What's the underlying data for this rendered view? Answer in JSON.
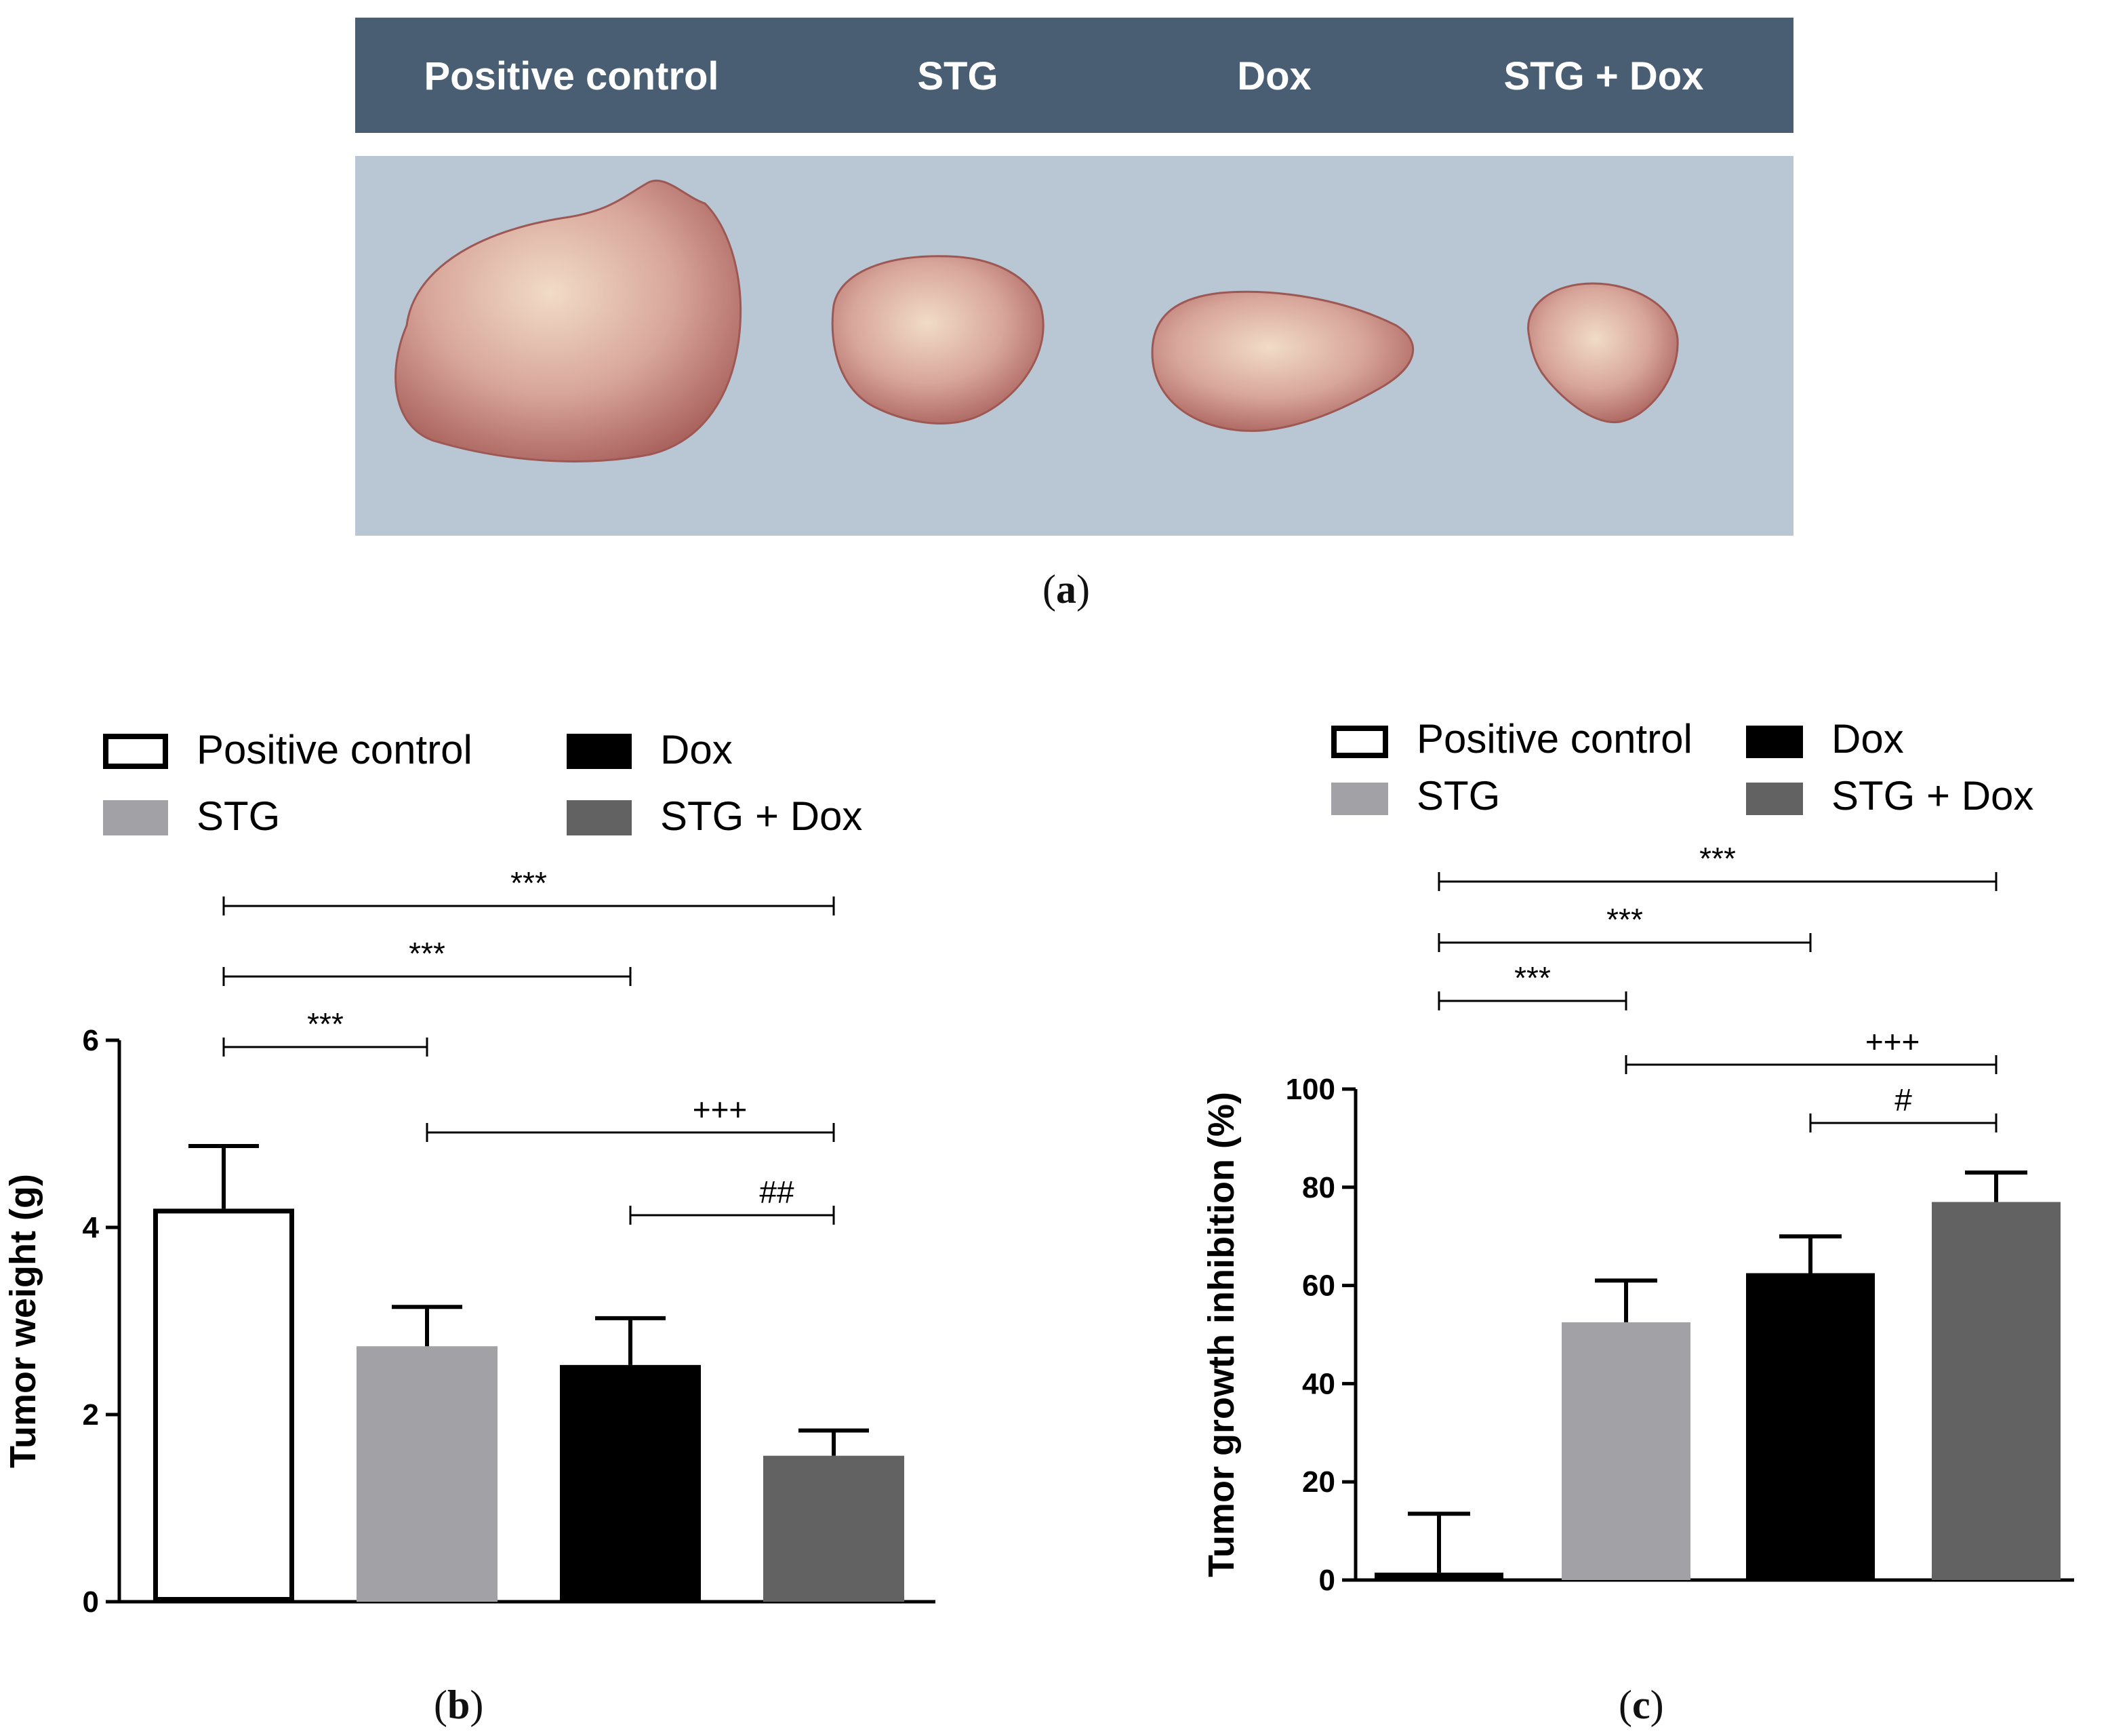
{
  "panel_a": {
    "header_labels": [
      "Positive control",
      "STG",
      "Dox",
      "STG + Dox"
    ],
    "caption": "a",
    "colors": {
      "header": "#4a5e73",
      "photo_bg": "#b9c6d3",
      "tissue": "#d9a39a"
    }
  },
  "chart_data": [
    {
      "type": "bar",
      "caption": "b",
      "title": "",
      "xlabel": "",
      "ylabel": "Tumor weight (g)",
      "ylim": [
        0,
        6
      ],
      "yticks": [
        0,
        2,
        4,
        6
      ],
      "categories": [
        "Positive control",
        "STG",
        "Dox",
        "STG + Dox"
      ],
      "values": [
        4.2,
        2.73,
        2.53,
        1.56
      ],
      "errors": [
        0.67,
        0.42,
        0.5,
        0.27
      ],
      "colors": [
        "#ffffff",
        "#a2a2a6",
        "#000000",
        "#626262"
      ],
      "legend": [
        "Positive control",
        "STG",
        "Dox",
        "STG + Dox"
      ],
      "legend_location": "top",
      "significance": [
        {
          "from": 0,
          "to": 1,
          "label": "***"
        },
        {
          "from": 0,
          "to": 2,
          "label": "***"
        },
        {
          "from": 0,
          "to": 3,
          "label": "***"
        },
        {
          "from": 1,
          "to": 3,
          "label": "+++"
        },
        {
          "from": 2,
          "to": 3,
          "label": "##"
        }
      ]
    },
    {
      "type": "bar",
      "caption": "c",
      "title": "",
      "xlabel": "",
      "ylabel": "Tumor growth inhibition (%)",
      "ylim": [
        0,
        100
      ],
      "yticks": [
        0,
        20,
        40,
        60,
        80,
        100
      ],
      "categories": [
        "Positive control",
        "STG",
        "Dox",
        "STG + Dox"
      ],
      "values": [
        1.5,
        52.5,
        62.5,
        77
      ],
      "errors": [
        12,
        8.5,
        7.5,
        6
      ],
      "colors": [
        "#ffffff",
        "#a2a2a6",
        "#000000",
        "#626262"
      ],
      "legend": [
        "Positive control",
        "STG",
        "Dox",
        "STG + Dox"
      ],
      "legend_location": "top",
      "significance": [
        {
          "from": 0,
          "to": 1,
          "label": "***"
        },
        {
          "from": 0,
          "to": 2,
          "label": "***"
        },
        {
          "from": 0,
          "to": 3,
          "label": "***"
        },
        {
          "from": 1,
          "to": 3,
          "label": "+++"
        },
        {
          "from": 2,
          "to": 3,
          "label": "#"
        }
      ]
    }
  ]
}
